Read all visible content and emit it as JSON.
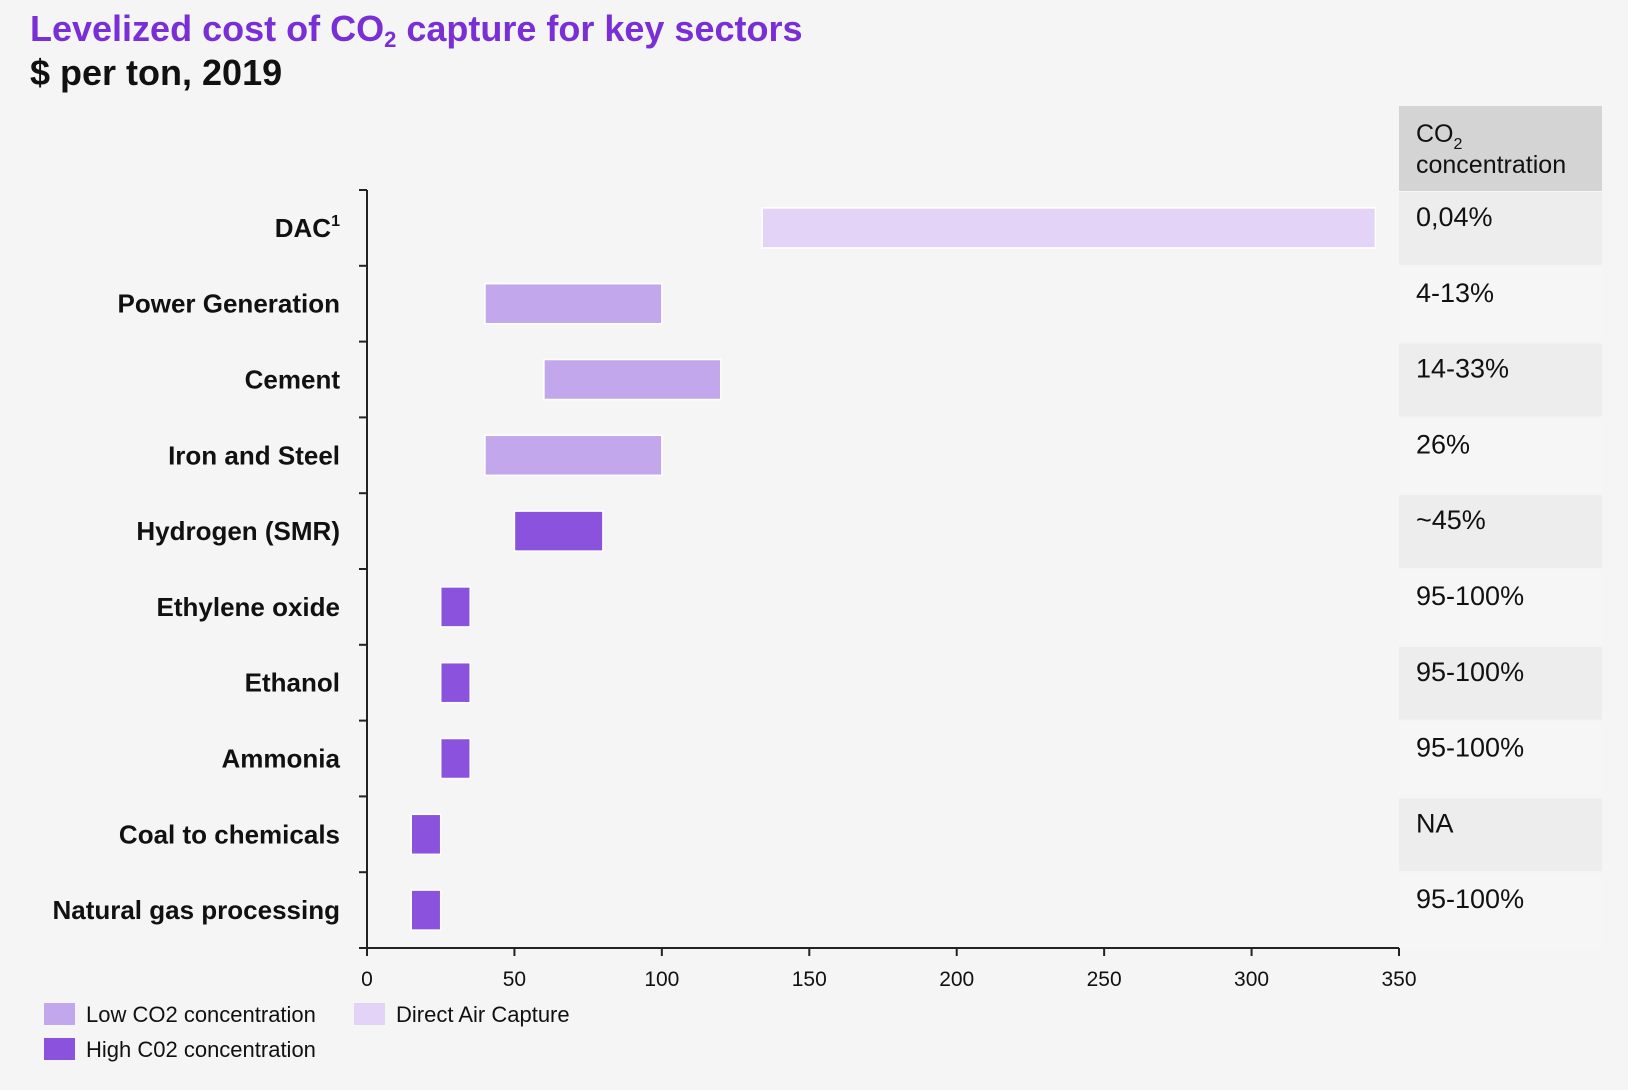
{
  "title": {
    "pre": "Levelized cost of CO",
    "sub": "2",
    "post": " capture for key sectors"
  },
  "subtitle": "$ per ton, 2019",
  "colors": {
    "low": "#c2a7ec",
    "high": "#8b53dd",
    "dac": "#e3d3f6",
    "title": "#7a2fd6",
    "table_header": "#d4d4d4",
    "table_shade": "#ededed",
    "table_plain": "#f6f6f6"
  },
  "concentration_header": {
    "line1_pre": "CO",
    "line1_sub": "2",
    "line2": "concentration"
  },
  "chart_data": {
    "type": "bar",
    "orientation": "horizontal",
    "subtype": "floating-range",
    "title": "Levelized cost of CO2 capture for key sectors",
    "subtitle": "$ per ton, 2019",
    "xlim": [
      0,
      350
    ],
    "xticks": [
      0,
      50,
      100,
      150,
      200,
      250,
      300,
      350
    ],
    "categories": [
      {
        "label": "DAC",
        "sup": "1",
        "min": 134,
        "max": 342,
        "group": "dac",
        "concentration": "0,04%"
      },
      {
        "label": "Power Generation",
        "min": 40,
        "max": 100,
        "group": "low",
        "concentration": "4-13%"
      },
      {
        "label": "Cement",
        "min": 60,
        "max": 120,
        "group": "low",
        "concentration": "14-33%"
      },
      {
        "label": "Iron and Steel",
        "min": 40,
        "max": 100,
        "group": "low",
        "concentration": "26%"
      },
      {
        "label": "Hydrogen (SMR)",
        "min": 50,
        "max": 80,
        "group": "high",
        "concentration": "~45%"
      },
      {
        "label": "Ethylene oxide",
        "min": 25,
        "max": 35,
        "group": "high",
        "concentration": "95-100%"
      },
      {
        "label": "Ethanol",
        "min": 25,
        "max": 35,
        "group": "high",
        "concentration": "95-100%"
      },
      {
        "label": "Ammonia",
        "min": 25,
        "max": 35,
        "group": "high",
        "concentration": "95-100%"
      },
      {
        "label": "Coal to chemicals",
        "min": 15,
        "max": 25,
        "group": "high",
        "concentration": "NA"
      },
      {
        "label": "Natural gas processing",
        "min": 15,
        "max": 25,
        "group": "high",
        "concentration": "95-100%"
      }
    ],
    "legend": [
      {
        "label": "Low CO2 concentration",
        "group": "low"
      },
      {
        "label": "Direct Air Capture",
        "group": "dac"
      },
      {
        "label": "High C02 concentration",
        "group": "high"
      }
    ],
    "legend_position": "bottom-left",
    "grid": false
  }
}
